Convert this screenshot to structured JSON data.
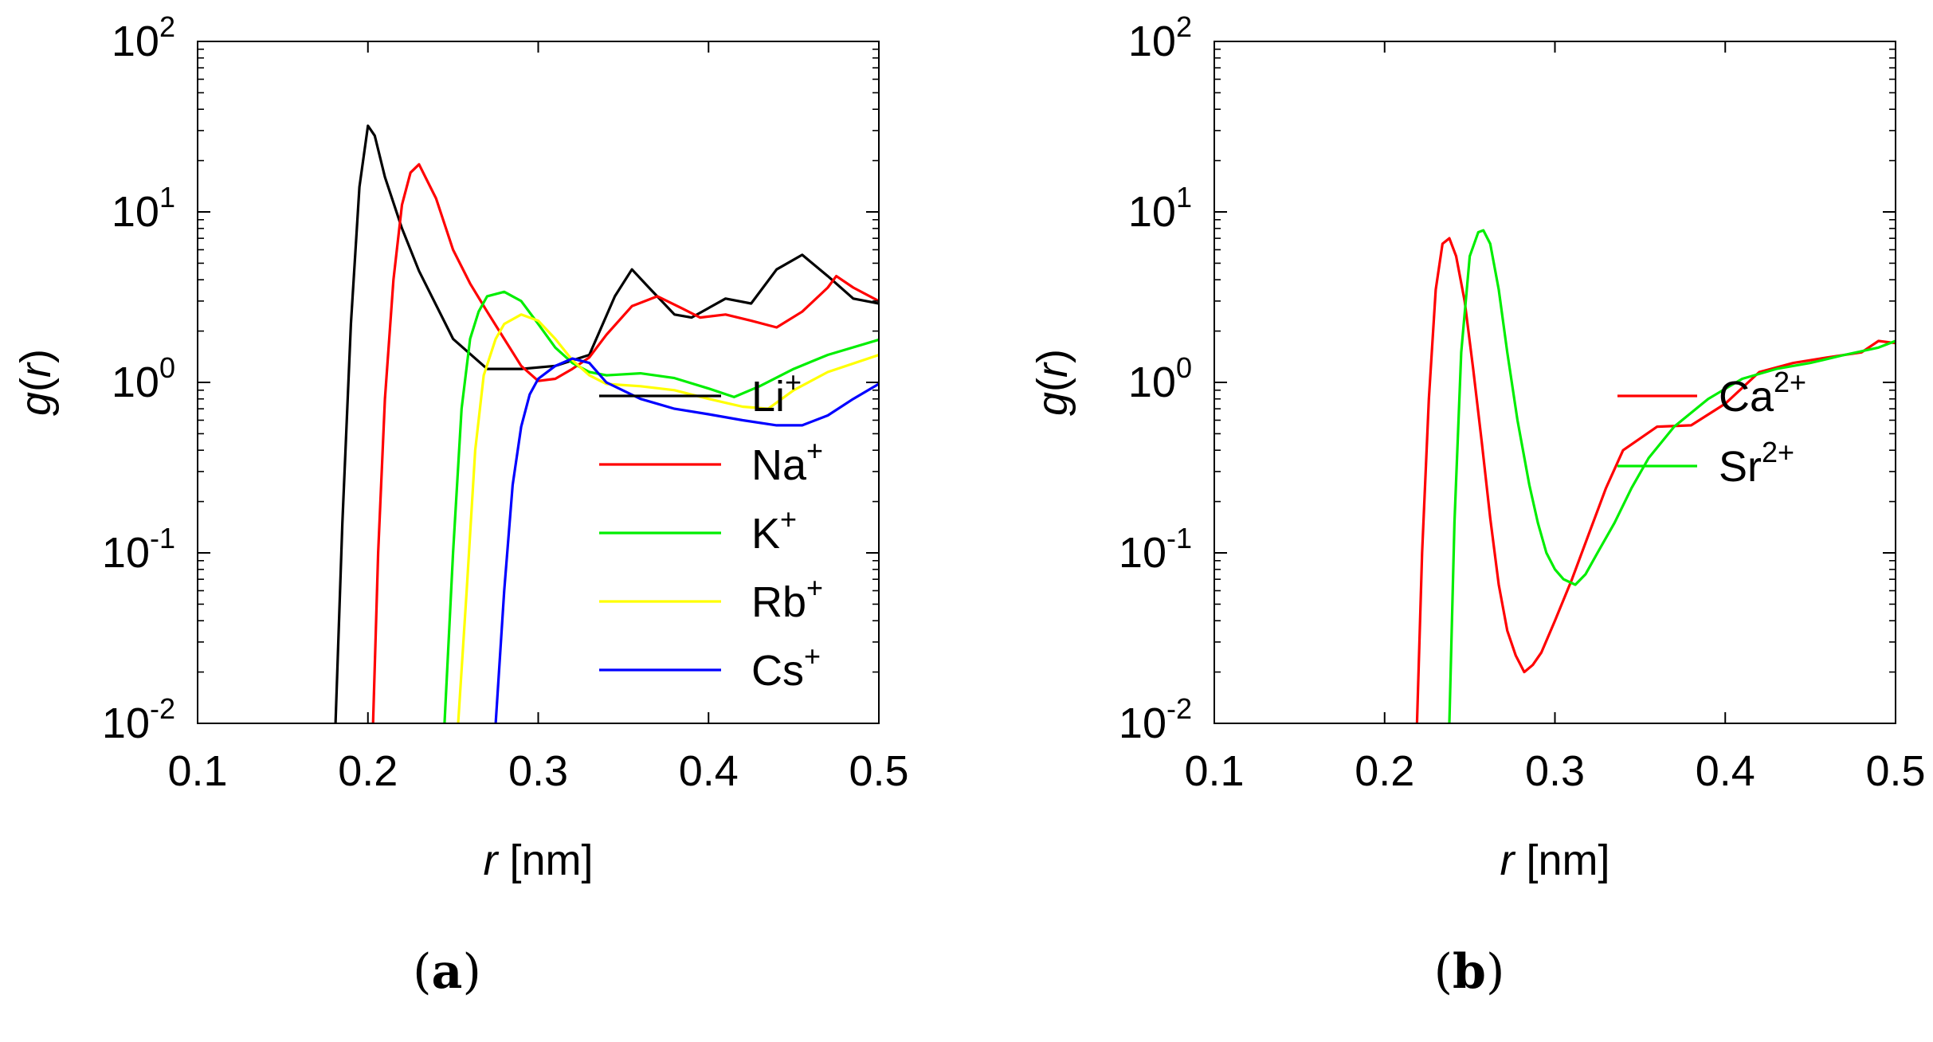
{
  "chart_data": [
    {
      "panel": "(a)",
      "type": "line",
      "xlabel": {
        "italic": "r",
        "rest": " [nm]"
      },
      "ylabel": {
        "pre": "g(",
        "italic": "r",
        "post": ")"
      },
      "xlim": [
        0.1,
        0.5
      ],
      "ylim": [
        0.01,
        100
      ],
      "yscale": "log",
      "xticks": [
        "0.1",
        "0.2",
        "0.3",
        "0.4",
        "0.5"
      ],
      "yticks": [
        {
          "value": 0.01,
          "base": "10",
          "exp": "-2"
        },
        {
          "value": 0.1,
          "base": "10",
          "exp": "-1"
        },
        {
          "value": 1,
          "base": "10",
          "exp": "0"
        },
        {
          "value": 10,
          "base": "10",
          "exp": "1"
        },
        {
          "value": 100,
          "base": "10",
          "exp": "2"
        }
      ],
      "legend_position": "bottom-right",
      "grid": false,
      "series": [
        {
          "name": "Li",
          "sup": "+",
          "color": "#000000",
          "x": [
            0.181,
            0.185,
            0.19,
            0.195,
            0.2,
            0.204,
            0.21,
            0.22,
            0.23,
            0.25,
            0.27,
            0.29,
            0.31,
            0.33,
            0.345,
            0.355,
            0.365,
            0.38,
            0.39,
            0.41,
            0.425,
            0.44,
            0.455,
            0.47,
            0.485,
            0.5
          ],
          "y": [
            0.01,
            0.15,
            2.2,
            14,
            32,
            28,
            16,
            8,
            4.5,
            1.8,
            1.2,
            1.2,
            1.25,
            1.45,
            3.2,
            4.6,
            3.6,
            2.5,
            2.4,
            3.1,
            2.9,
            4.6,
            5.6,
            4.2,
            3.1,
            2.9
          ]
        },
        {
          "name": "Na",
          "sup": "+",
          "color": "#ff0000",
          "x": [
            0.203,
            0.206,
            0.21,
            0.215,
            0.22,
            0.225,
            0.23,
            0.24,
            0.25,
            0.26,
            0.27,
            0.28,
            0.29,
            0.3,
            0.31,
            0.32,
            0.33,
            0.34,
            0.355,
            0.37,
            0.385,
            0.395,
            0.41,
            0.425,
            0.44,
            0.455,
            0.47,
            0.475,
            0.485,
            0.5
          ],
          "y": [
            0.01,
            0.1,
            0.8,
            4,
            11,
            17,
            19,
            12,
            6,
            3.8,
            2.6,
            1.8,
            1.25,
            1.02,
            1.05,
            1.2,
            1.4,
            1.9,
            2.8,
            3.2,
            2.7,
            2.4,
            2.5,
            2.3,
            2.1,
            2.6,
            3.6,
            4.2,
            3.6,
            3.0
          ]
        },
        {
          "name": "K",
          "sup": "+",
          "color": "#00ee00",
          "x": [
            0.245,
            0.25,
            0.255,
            0.26,
            0.265,
            0.27,
            0.28,
            0.29,
            0.3,
            0.31,
            0.32,
            0.33,
            0.34,
            0.36,
            0.38,
            0.4,
            0.415,
            0.43,
            0.45,
            0.47,
            0.5
          ],
          "y": [
            0.01,
            0.1,
            0.7,
            1.8,
            2.6,
            3.2,
            3.4,
            3.0,
            2.2,
            1.6,
            1.3,
            1.15,
            1.1,
            1.13,
            1.06,
            0.92,
            0.82,
            0.95,
            1.2,
            1.45,
            1.78
          ]
        },
        {
          "name": "Rb",
          "sup": "+",
          "color": "#ffff00",
          "x": [
            0.253,
            0.258,
            0.263,
            0.268,
            0.275,
            0.28,
            0.29,
            0.3,
            0.31,
            0.32,
            0.33,
            0.34,
            0.36,
            0.38,
            0.4,
            0.42,
            0.435,
            0.45,
            0.47,
            0.5
          ],
          "y": [
            0.01,
            0.06,
            0.4,
            1.1,
            1.8,
            2.2,
            2.5,
            2.3,
            1.8,
            1.35,
            1.1,
            0.98,
            0.95,
            0.9,
            0.8,
            0.72,
            0.7,
            0.9,
            1.15,
            1.45
          ]
        },
        {
          "name": "Cs",
          "sup": "+",
          "color": "#0000ff",
          "x": [
            0.275,
            0.28,
            0.285,
            0.29,
            0.295,
            0.3,
            0.31,
            0.32,
            0.33,
            0.34,
            0.36,
            0.38,
            0.4,
            0.42,
            0.44,
            0.455,
            0.47,
            0.485,
            0.5
          ],
          "y": [
            0.01,
            0.06,
            0.25,
            0.55,
            0.85,
            1.05,
            1.25,
            1.38,
            1.3,
            1.0,
            0.8,
            0.7,
            0.65,
            0.6,
            0.56,
            0.56,
            0.64,
            0.8,
            0.98
          ]
        }
      ]
    },
    {
      "panel": "(b)",
      "type": "line",
      "xlabel": {
        "italic": "r",
        "rest": " [nm]"
      },
      "ylabel": {
        "pre": "g(",
        "italic": "r",
        "post": ")"
      },
      "xlim": [
        0.1,
        0.5
      ],
      "ylim": [
        0.01,
        100
      ],
      "yscale": "log",
      "xticks": [
        "0.1",
        "0.2",
        "0.3",
        "0.4",
        "0.5"
      ],
      "yticks": [
        {
          "value": 0.01,
          "base": "10",
          "exp": "-2"
        },
        {
          "value": 0.1,
          "base": "10",
          "exp": "-1"
        },
        {
          "value": 1,
          "base": "10",
          "exp": "0"
        },
        {
          "value": 10,
          "base": "10",
          "exp": "1"
        },
        {
          "value": 100,
          "base": "10",
          "exp": "2"
        }
      ],
      "legend_position": "right",
      "grid": false,
      "series": [
        {
          "name": "Ca",
          "sup": "2+",
          "color": "#ff0000",
          "x": [
            0.219,
            0.222,
            0.226,
            0.23,
            0.234,
            0.238,
            0.242,
            0.247,
            0.252,
            0.257,
            0.262,
            0.267,
            0.272,
            0.277,
            0.282,
            0.287,
            0.292,
            0.3,
            0.31,
            0.32,
            0.33,
            0.34,
            0.36,
            0.38,
            0.4,
            0.42,
            0.44,
            0.46,
            0.48,
            0.49,
            0.5
          ],
          "y": [
            0.01,
            0.1,
            0.8,
            3.5,
            6.5,
            7.0,
            5.5,
            3.0,
            1.2,
            0.45,
            0.16,
            0.065,
            0.035,
            0.025,
            0.02,
            0.022,
            0.026,
            0.04,
            0.07,
            0.13,
            0.24,
            0.4,
            0.55,
            0.56,
            0.75,
            1.15,
            1.3,
            1.4,
            1.5,
            1.75,
            1.7
          ]
        },
        {
          "name": "Sr",
          "sup": "2+",
          "color": "#00ee00",
          "x": [
            0.238,
            0.241,
            0.245,
            0.25,
            0.255,
            0.258,
            0.262,
            0.267,
            0.272,
            0.278,
            0.285,
            0.29,
            0.295,
            0.3,
            0.305,
            0.312,
            0.318,
            0.325,
            0.335,
            0.345,
            0.355,
            0.37,
            0.39,
            0.41,
            0.43,
            0.45,
            0.47,
            0.49,
            0.5
          ],
          "y": [
            0.01,
            0.15,
            1.5,
            5.5,
            7.6,
            7.8,
            6.5,
            3.5,
            1.5,
            0.6,
            0.25,
            0.15,
            0.1,
            0.08,
            0.07,
            0.065,
            0.075,
            0.1,
            0.15,
            0.24,
            0.36,
            0.55,
            0.8,
            1.05,
            1.2,
            1.3,
            1.45,
            1.6,
            1.75
          ]
        }
      ]
    }
  ],
  "panel_labels": {
    "a": {
      "open": "(",
      "letter": "a",
      "close": ")"
    },
    "b": {
      "open": "(",
      "letter": "b",
      "close": ")"
    }
  }
}
